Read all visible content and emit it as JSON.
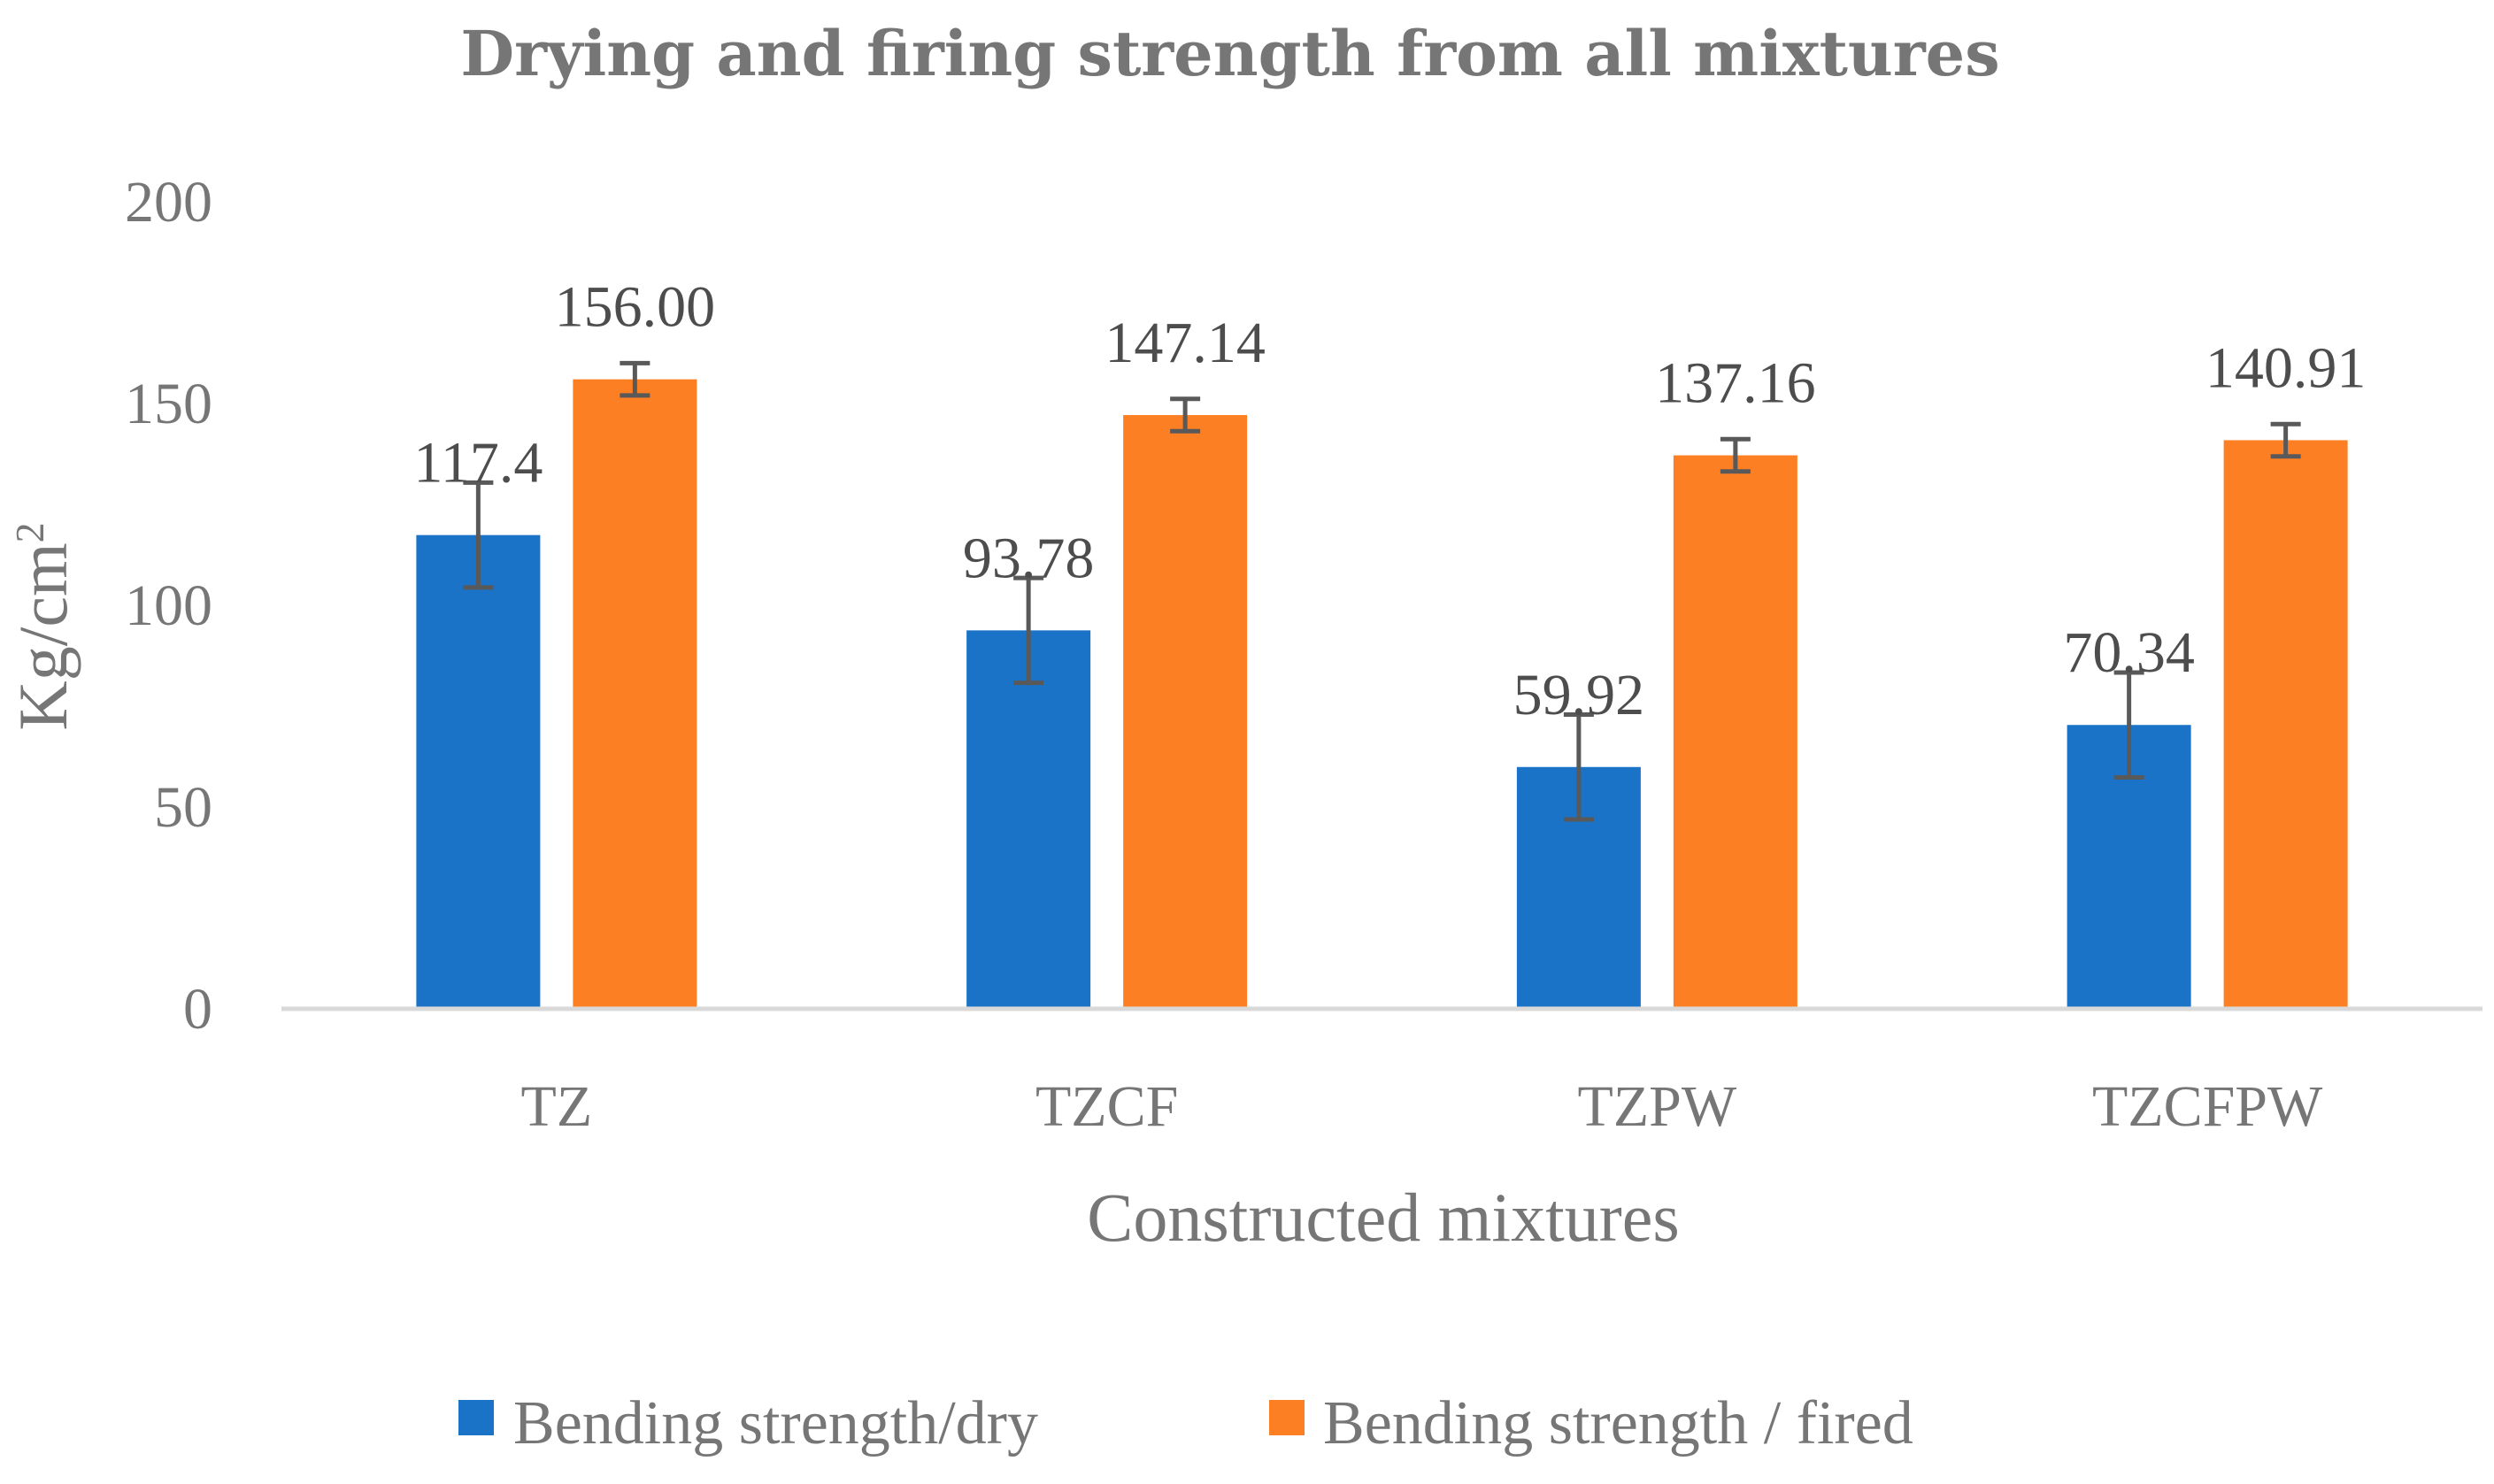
{
  "chart_data": {
    "type": "bar",
    "title": "Drying and firing strength from all mixtures",
    "xlabel": "Constructed mixtures",
    "ylabel": "Kg/cm",
    "ylabel_superscript": "2",
    "ylim": [
      0,
      200
    ],
    "yticks": [
      "0",
      "50",
      "100",
      "150",
      "200"
    ],
    "grid": false,
    "legend_position": "bottom",
    "categories": [
      "TZ",
      "TZCF",
      "TZPW",
      "TZCFPW"
    ],
    "series": [
      {
        "name": "Bending strength/dry",
        "color": "#1a73c7",
        "values": [
          117.4,
          93.78,
          59.92,
          70.34
        ],
        "labels": [
          "117.4",
          "93.78",
          "59.92",
          "70.34"
        ],
        "errors": [
          13,
          13,
          13,
          13
        ]
      },
      {
        "name": "Bending strength / fired",
        "color": "#fd7f24",
        "values": [
          156.0,
          147.14,
          137.16,
          140.91
        ],
        "labels": [
          "156.00",
          "147.14",
          "137.16",
          "140.91"
        ],
        "errors": [
          4,
          4,
          4,
          4
        ]
      }
    ]
  }
}
